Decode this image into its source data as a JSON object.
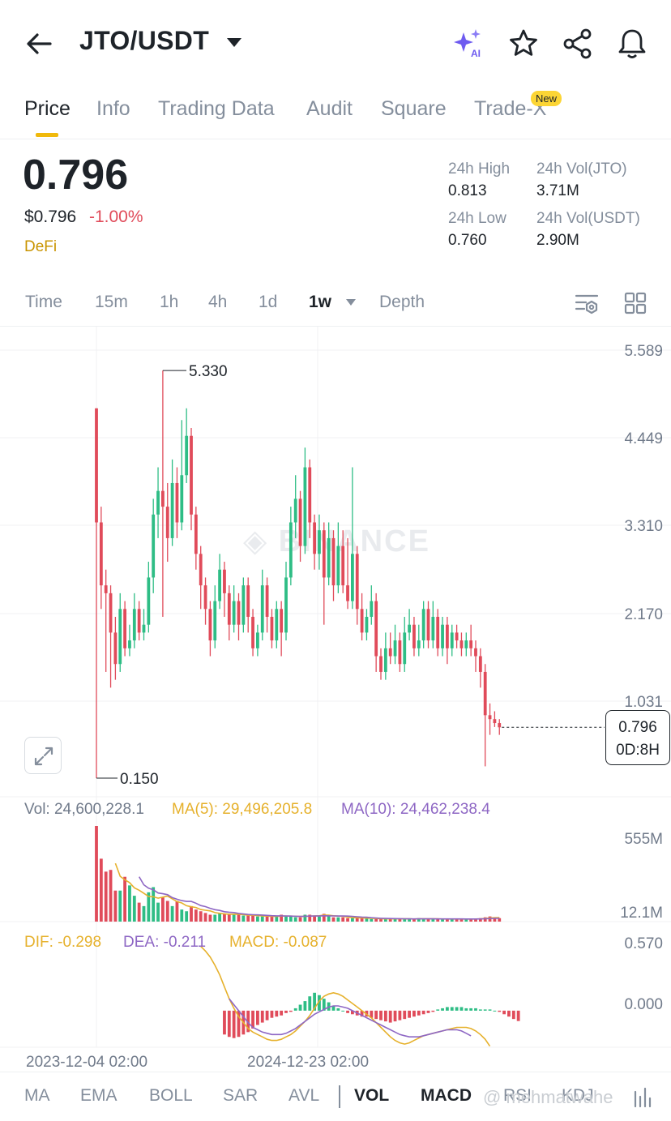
{
  "header": {
    "pair": "JTO/USDT",
    "icons": [
      "back-arrow-icon",
      "chevron-down-icon",
      "ai-sparkle-icon",
      "star-icon",
      "share-icon",
      "bell-icon"
    ],
    "ai_label": "AI"
  },
  "tabs": {
    "items": [
      "Price",
      "Info",
      "Trading Data",
      "Audit",
      "Square",
      "Trade-X"
    ],
    "active": "Price",
    "new_badge": "New"
  },
  "ticker": {
    "last_price": "0.796",
    "usd_price": "$0.796",
    "change": "-1.00%",
    "tag": "DeFi",
    "high_label": "24h High",
    "high": "0.813",
    "low_label": "24h Low",
    "low": "0.760",
    "vol_base_label": "24h Vol(JTO)",
    "vol_base": "3.71M",
    "vol_quote_label": "24h Vol(USDT)",
    "vol_quote": "2.90M"
  },
  "timeframes": {
    "items": [
      "Time",
      "15m",
      "1h",
      "4h",
      "1d",
      "1w",
      "Depth"
    ],
    "active": "1w"
  },
  "colors": {
    "up": "#2ebd85",
    "down": "#e04b5a",
    "accent": "#f0b90b",
    "ma5": "#e6b12c",
    "ma10": "#8e67c4"
  },
  "chart": {
    "watermark": "BINANCE",
    "price_axis": [
      "5.589",
      "4.449",
      "3.310",
      "2.170",
      "1.031"
    ],
    "max_label": "5.330",
    "min_label": "0.150",
    "current_price": "0.796",
    "countdown": "0D:8H",
    "time_axis": [
      "2023-12-04 02:00",
      "2024-12-23 02:00"
    ]
  },
  "chart_data": {
    "type": "candlestick",
    "interval": "1w",
    "ylim": [
      0.15,
      5.589
    ],
    "candles": [
      [
        4.85,
        3.4,
        4.85,
        0.15
      ],
      [
        3.4,
        2.6,
        3.6,
        2.3
      ],
      [
        2.6,
        2.5,
        2.8,
        1.5
      ],
      [
        2.5,
        2.0,
        2.6,
        1.3
      ],
      [
        2.0,
        1.6,
        2.2,
        1.4
      ],
      [
        1.6,
        2.3,
        2.5,
        1.5
      ],
      [
        2.3,
        1.8,
        2.4,
        1.7
      ],
      [
        1.8,
        1.9,
        2.1,
        1.7
      ],
      [
        1.9,
        2.3,
        2.5,
        1.8
      ],
      [
        2.3,
        2.0,
        2.4,
        1.9
      ],
      [
        2.0,
        2.1,
        2.3,
        1.9
      ],
      [
        2.1,
        2.7,
        2.9,
        2.0
      ],
      [
        2.7,
        3.5,
        3.7,
        2.5
      ],
      [
        3.5,
        3.8,
        4.1,
        3.2
      ],
      [
        3.8,
        3.6,
        5.33,
        2.2
      ],
      [
        3.6,
        3.2,
        3.9,
        2.9
      ],
      [
        3.2,
        3.9,
        4.2,
        3.1
      ],
      [
        3.9,
        3.4,
        4.1,
        3.2
      ],
      [
        3.4,
        4.0,
        4.7,
        3.3
      ],
      [
        4.0,
        4.5,
        4.85,
        3.9
      ],
      [
        4.5,
        3.5,
        4.6,
        3.3
      ],
      [
        3.5,
        3.0,
        3.6,
        2.8
      ],
      [
        3.0,
        2.6,
        3.1,
        2.3
      ],
      [
        2.6,
        2.3,
        2.7,
        2.1
      ],
      [
        2.3,
        1.9,
        2.4,
        1.7
      ],
      [
        1.9,
        2.4,
        2.6,
        1.8
      ],
      [
        2.4,
        2.8,
        3.0,
        2.3
      ],
      [
        2.8,
        2.5,
        2.9,
        2.2
      ],
      [
        2.5,
        2.1,
        2.6,
        1.9
      ],
      [
        2.1,
        2.4,
        2.6,
        2.0
      ],
      [
        2.4,
        2.1,
        2.5,
        1.9
      ],
      [
        2.1,
        2.6,
        2.7,
        2.0
      ],
      [
        2.6,
        2.2,
        2.7,
        2.0
      ],
      [
        2.2,
        1.8,
        2.3,
        1.7
      ],
      [
        1.8,
        2.0,
        2.1,
        1.7
      ],
      [
        2.0,
        2.6,
        2.8,
        1.9
      ],
      [
        2.6,
        2.2,
        2.7,
        2.0
      ],
      [
        2.2,
        1.9,
        2.3,
        1.8
      ],
      [
        1.9,
        2.3,
        2.4,
        1.8
      ],
      [
        2.3,
        2.0,
        2.4,
        1.7
      ],
      [
        2.0,
        2.7,
        2.9,
        1.9
      ],
      [
        2.7,
        3.4,
        3.6,
        2.6
      ],
      [
        3.4,
        3.7,
        4.0,
        3.2
      ],
      [
        3.7,
        3.1,
        3.8,
        2.9
      ],
      [
        3.1,
        4.1,
        4.35,
        3.0
      ],
      [
        4.1,
        3.4,
        4.2,
        3.2
      ],
      [
        3.4,
        3.0,
        3.5,
        2.8
      ],
      [
        3.0,
        3.3,
        3.5,
        2.8
      ],
      [
        3.3,
        2.7,
        3.4,
        2.1
      ],
      [
        2.7,
        3.2,
        3.4,
        2.6
      ],
      [
        3.2,
        2.6,
        3.3,
        2.4
      ],
      [
        2.6,
        3.1,
        3.4,
        2.5
      ],
      [
        3.1,
        2.6,
        3.3,
        2.5
      ],
      [
        2.6,
        2.4,
        3.2,
        2.3
      ],
      [
        2.4,
        3.0,
        4.1,
        2.3
      ],
      [
        3.0,
        2.3,
        3.1,
        2.1
      ],
      [
        2.3,
        2.0,
        2.5,
        1.9
      ],
      [
        2.0,
        2.2,
        2.3,
        1.9
      ],
      [
        2.2,
        2.4,
        2.6,
        2.1
      ],
      [
        2.4,
        1.7,
        2.5,
        1.5
      ],
      [
        1.7,
        1.5,
        1.8,
        1.4
      ],
      [
        1.5,
        1.8,
        2.0,
        1.4
      ],
      [
        1.8,
        1.7,
        2.0,
        1.6
      ],
      [
        1.7,
        1.9,
        2.1,
        1.6
      ],
      [
        1.9,
        1.6,
        2.0,
        1.5
      ],
      [
        1.6,
        2.0,
        2.2,
        1.5
      ],
      [
        2.0,
        2.1,
        2.3,
        1.9
      ],
      [
        2.1,
        1.8,
        2.2,
        1.7
      ],
      [
        1.8,
        1.9,
        2.1,
        1.7
      ],
      [
        1.9,
        2.3,
        2.4,
        1.8
      ],
      [
        2.3,
        1.9,
        2.4,
        1.8
      ],
      [
        1.9,
        2.2,
        2.4,
        1.8
      ],
      [
        2.2,
        1.8,
        2.3,
        1.7
      ],
      [
        1.8,
        2.1,
        2.2,
        1.7
      ],
      [
        2.1,
        1.8,
        2.2,
        1.6
      ],
      [
        1.8,
        2.0,
        2.1,
        1.7
      ],
      [
        2.0,
        1.9,
        2.1,
        1.8
      ],
      [
        1.9,
        1.8,
        2.0,
        1.7
      ],
      [
        1.8,
        1.9,
        2.0,
        1.7
      ],
      [
        1.9,
        1.8,
        2.1,
        1.7
      ],
      [
        1.8,
        1.7,
        1.9,
        1.5
      ],
      [
        1.7,
        1.5,
        1.8,
        1.3
      ],
      [
        1.5,
        0.95,
        1.6,
        0.3
      ],
      [
        0.95,
        0.9,
        1.1,
        0.7
      ],
      [
        0.9,
        0.85,
        1.0,
        0.8
      ],
      [
        0.85,
        0.796,
        0.9,
        0.7
      ]
    ],
    "volume": {
      "title": "Vol: 24,600,228.1",
      "ma5_label": "MA(5): 29,496,205.8",
      "ma10_label": "MA(10): 24,462,238.4",
      "axis": [
        "555M",
        "12.1M"
      ],
      "ymax": 555,
      "values": [
        555,
        365,
        290,
        300,
        180,
        180,
        260,
        210,
        150,
        110,
        90,
        170,
        200,
        110,
        140,
        120,
        90,
        120,
        70,
        60,
        90,
        70,
        60,
        50,
        40,
        40,
        50,
        45,
        40,
        40,
        40,
        35,
        35,
        35,
        30,
        30,
        30,
        30,
        30,
        40,
        30,
        30,
        25,
        25,
        40,
        40,
        35,
        30,
        45,
        35,
        25,
        25,
        25,
        20,
        20,
        20,
        20,
        20,
        15,
        15,
        15,
        15,
        20,
        15,
        15,
        15,
        15,
        15,
        20,
        15,
        15,
        15,
        15,
        15,
        15,
        15,
        15,
        15,
        15,
        15,
        15,
        20,
        25,
        30,
        22,
        20
      ]
    },
    "macd": {
      "dif_label": "DIF: -0.298",
      "dea_label": "DEA: -0.211",
      "macd_label": "MACD: -0.087",
      "axis": [
        "0.570",
        "0.000"
      ],
      "ymax": 0.57,
      "ymin": -0.3,
      "dif": [
        0.54,
        0.5,
        0.45,
        0.38,
        0.3,
        0.2,
        0.1,
        0.02,
        -0.05,
        -0.1,
        -0.15,
        -0.18,
        -0.2,
        -0.22,
        -0.24,
        -0.25,
        -0.25,
        -0.24,
        -0.22,
        -0.2,
        -0.17,
        -0.13,
        -0.09,
        -0.04,
        0.02,
        0.08,
        0.12,
        0.14,
        0.15,
        0.14,
        0.12,
        0.09,
        0.06,
        0.03,
        0.0,
        -0.03,
        -0.06,
        -0.1,
        -0.14,
        -0.18,
        -0.22,
        -0.25,
        -0.27,
        -0.28,
        -0.27,
        -0.25,
        -0.23,
        -0.21,
        -0.2,
        -0.19,
        -0.18,
        -0.17,
        -0.16,
        -0.15,
        -0.14,
        -0.14,
        -0.14,
        -0.15,
        -0.17,
        -0.2,
        -0.24,
        -0.298
      ],
      "dea": [
        0.1,
        0.05,
        0.0,
        -0.05,
        -0.1,
        -0.14,
        -0.16,
        -0.18,
        -0.19,
        -0.2,
        -0.2,
        -0.2,
        -0.19,
        -0.17,
        -0.15,
        -0.12,
        -0.09,
        -0.06,
        -0.03,
        -0.01,
        0.01,
        0.03,
        0.04,
        0.04,
        0.03,
        0.02,
        0.0,
        -0.02,
        -0.04,
        -0.06,
        -0.08,
        -0.1,
        -0.12,
        -0.14,
        -0.16,
        -0.18,
        -0.2,
        -0.21,
        -0.22,
        -0.22,
        -0.22,
        -0.21,
        -0.2,
        -0.19,
        -0.18,
        -0.17,
        -0.16,
        -0.16,
        -0.16,
        -0.17,
        -0.19,
        -0.211
      ],
      "hist": [
        -0.2,
        -0.22,
        -0.23,
        -0.22,
        -0.2,
        -0.18,
        -0.15,
        -0.12,
        -0.1,
        -0.08,
        -0.06,
        -0.05,
        -0.04,
        -0.02,
        -0.01,
        0.02,
        0.05,
        0.08,
        0.12,
        0.15,
        0.13,
        0.1,
        0.07,
        0.04,
        0.02,
        0.0,
        -0.02,
        -0.03,
        -0.04,
        -0.05,
        -0.05,
        -0.06,
        -0.07,
        -0.08,
        -0.09,
        -0.1,
        -0.09,
        -0.08,
        -0.07,
        -0.06,
        -0.05,
        -0.04,
        -0.03,
        -0.02,
        -0.01,
        0.01,
        0.02,
        0.03,
        0.03,
        0.03,
        0.03,
        0.02,
        0.02,
        0.02,
        0.01,
        0.01,
        0.01,
        0.0,
        -0.01,
        -0.03,
        -0.05,
        -0.07,
        -0.087
      ]
    }
  },
  "bottom_tabs": {
    "items": [
      "MA",
      "EMA",
      "BOLL",
      "SAR",
      "AVL",
      "VOL",
      "MACD",
      "RSI",
      "KDJ"
    ],
    "active": [
      "VOL",
      "MACD"
    ]
  },
  "attribution": "@ mehmatwahe"
}
